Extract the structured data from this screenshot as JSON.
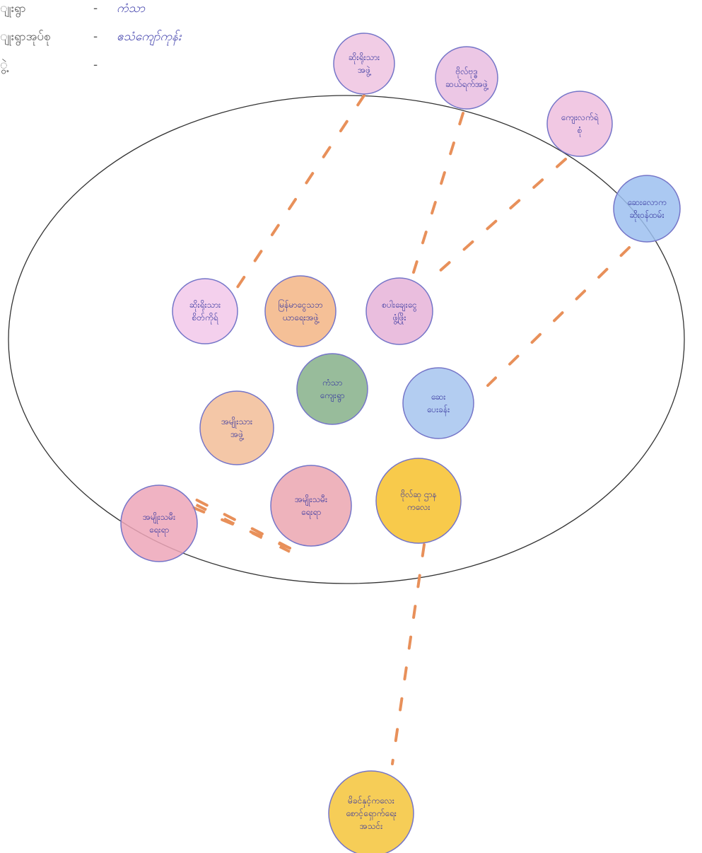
{
  "header": {
    "separator": "-",
    "rows": [
      {
        "label": "ျုးရွာ",
        "value": "ကံသာ"
      },
      {
        "label": "ျုးရွာအုပ်စု",
        "value": "ဧသံကျော်ကုန်း"
      },
      {
        "label": "ွဲ့"
      }
    ]
  },
  "nodes": [
    {
      "label": [
        "ဆိုးရိုးသား",
        "အဖွဲ့"
      ]
    },
    {
      "label": [
        "ဗိုလ်ဗုဒ္ဓ",
        "ဆယ်ရက်အဖွဲ့"
      ]
    },
    {
      "label": [
        "ကျေးလက်ရဲ",
        "စုံ"
      ]
    },
    {
      "label": [
        "ဆေးလောက",
        "ဆိုးဝန်ထမ်း"
      ]
    },
    {
      "label": [
        "ဆိုးရိုးသား",
        "စိတ်ကိုရ်"
      ]
    },
    {
      "label": [
        "မြန်မာငွေသဘ",
        "ယာရေးအဖွဲ့"
      ]
    },
    {
      "label": [
        "စပါးချေးငွေ",
        "ဖွံ့ဖြိုး"
      ]
    },
    {
      "label": [
        "ကံသာ",
        "ကျေးရွာ"
      ]
    },
    {
      "label": [
        "အမျိုးသား",
        "အဖွဲ့"
      ]
    },
    {
      "label": [
        "ဆေး",
        "ပေးခန်း"
      ]
    },
    {
      "label": [
        "အမျိုးသမီး",
        "ရေးရာ"
      ]
    },
    {
      "label": [
        "ဗိုလ်ဆု ဌာန",
        "ကလေး"
      ]
    },
    {
      "label": [
        "အမျိုးသမီး",
        "ရေးရာ"
      ]
    },
    {
      "label": [
        "မိခင်နှင့်ကလေး",
        "စောင့်ရှောက်ရေး",
        "အသင်း"
      ]
    }
  ]
}
